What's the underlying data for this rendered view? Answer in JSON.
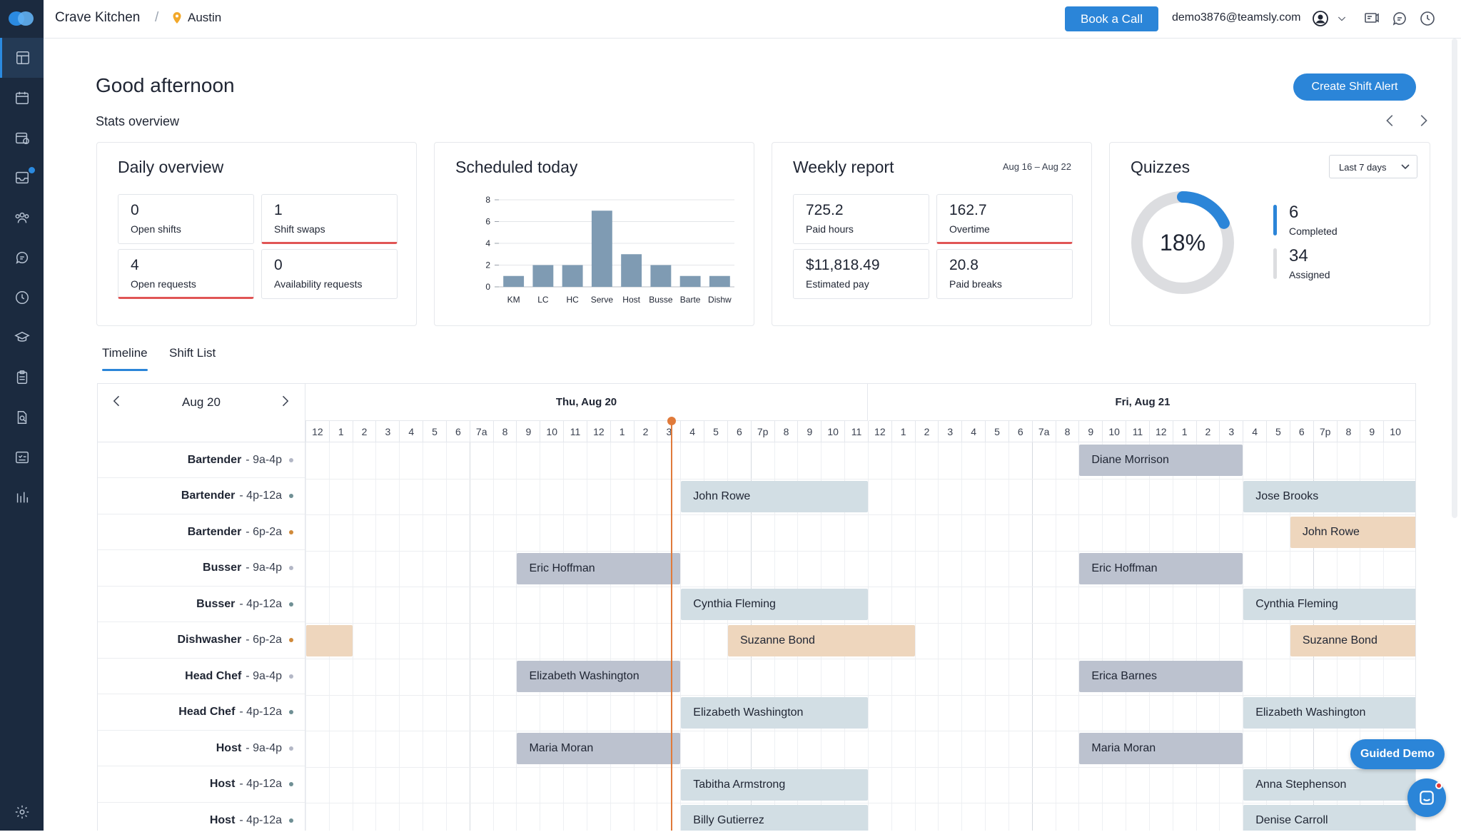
{
  "header": {
    "company": "Crave Kitchen",
    "separator": "/",
    "location": "Austin",
    "book_call_label": "Book a Call",
    "user_email": "demo3876@teamsly.com"
  },
  "greeting": "Good afternoon",
  "stats_title": "Stats overview",
  "create_alert_label": "Create Shift Alert",
  "daily": {
    "title": "Daily overview",
    "tiles": [
      {
        "value": "0",
        "label": "Open shifts"
      },
      {
        "value": "1",
        "label": "Shift swaps"
      },
      {
        "value": "4",
        "label": "Open requests"
      },
      {
        "value": "0",
        "label": "Availability requests"
      }
    ]
  },
  "scheduled": {
    "title": "Scheduled today"
  },
  "chart_data": {
    "type": "bar",
    "title": "Scheduled today",
    "categories": [
      "KM",
      "LC",
      "HC",
      "Serve",
      "Host",
      "Busse",
      "Barte",
      "Dishw"
    ],
    "values": [
      1,
      2,
      2,
      7,
      3,
      2,
      1,
      1
    ],
    "ylim": [
      0,
      8
    ],
    "yticks": [
      0,
      2,
      4,
      6,
      8
    ],
    "bar_color": "#7f9bb3",
    "grid": true
  },
  "weekly": {
    "title": "Weekly report",
    "range": "Aug 16 – Aug 22",
    "tiles": [
      {
        "value": "725.2",
        "label": "Paid hours"
      },
      {
        "value": "162.7",
        "label": "Overtime"
      },
      {
        "value": "$11,818.49",
        "label": "Estimated pay"
      },
      {
        "value": "20.8",
        "label": "Paid breaks"
      }
    ]
  },
  "quizzes": {
    "title": "Quizzes",
    "period": "Last 7 days",
    "percent_label": "18%",
    "percent_value": 0.18,
    "completed_value": "6",
    "completed_label": "Completed",
    "assigned_value": "34",
    "assigned_label": "Assigned"
  },
  "tabs": {
    "timeline": "Timeline",
    "shift_list": "Shift List"
  },
  "timeline": {
    "current_date": "Aug 20",
    "day1": "Thu, Aug 20",
    "day2": "Fri, Aug 21",
    "hours": [
      "12",
      "1",
      "2",
      "3",
      "4",
      "5",
      "6",
      "7a",
      "8",
      "9",
      "10",
      "11",
      "12",
      "1",
      "2",
      "3",
      "4",
      "5",
      "6",
      "7p",
      "8",
      "9",
      "10",
      "11",
      "12",
      "1",
      "2",
      "3",
      "4",
      "5",
      "6",
      "7a",
      "8",
      "9",
      "10",
      "11",
      "12",
      "1",
      "2",
      "3",
      "4",
      "5",
      "6",
      "7p",
      "8",
      "9",
      "10"
    ],
    "rows": [
      {
        "role": "Bartender",
        "time": "- 9a-4p",
        "dot": "#b3b7c6"
      },
      {
        "role": "Bartender",
        "time": "- 4p-12a",
        "dot": "#6f8f94"
      },
      {
        "role": "Bartender",
        "time": "- 6p-2a",
        "dot": "#d08a3a"
      },
      {
        "role": "Busser",
        "time": "- 9a-4p",
        "dot": "#b3b7c6"
      },
      {
        "role": "Busser",
        "time": "- 4p-12a",
        "dot": "#6f8f94"
      },
      {
        "role": "Dishwasher",
        "time": "- 6p-2a",
        "dot": "#d08a3a"
      },
      {
        "role": "Head Chef",
        "time": "- 9a-4p",
        "dot": "#b3b7c6"
      },
      {
        "role": "Head Chef",
        "time": "- 4p-12a",
        "dot": "#6f8f94"
      },
      {
        "role": "Host",
        "time": "- 9a-4p",
        "dot": "#b3b7c6"
      },
      {
        "role": "Host",
        "time": "- 4p-12a",
        "dot": "#6f8f94"
      },
      {
        "role": "Host",
        "time": "- 4p-12a",
        "dot": "#6f8f94"
      }
    ],
    "shifts": [
      {
        "row": 0,
        "start": "Fri 9a",
        "name": "Diane Morrison",
        "kind": "am"
      },
      {
        "row": 1,
        "start": "Thu 4p",
        "name": "John Rowe",
        "kind": "pm"
      },
      {
        "row": 1,
        "start": "Fri 4p",
        "name": "Jose Brooks",
        "kind": "pm"
      },
      {
        "row": 2,
        "start": "Fri 6p",
        "name": "John Rowe",
        "kind": "night"
      },
      {
        "row": 3,
        "start": "Thu 9a",
        "name": "Eric Hoffman",
        "kind": "am"
      },
      {
        "row": 3,
        "start": "Fri 9a",
        "name": "Eric Hoffman",
        "kind": "am"
      },
      {
        "row": 4,
        "start": "Thu 4p",
        "name": "Cynthia Fleming",
        "kind": "pm"
      },
      {
        "row": 4,
        "start": "Fri 4p",
        "name": "Cynthia Fleming",
        "kind": "pm"
      },
      {
        "row": 5,
        "start": "Wed 6p",
        "name": "",
        "kind": "night"
      },
      {
        "row": 5,
        "start": "Thu 6p",
        "name": "Suzanne Bond",
        "kind": "night"
      },
      {
        "row": 5,
        "start": "Fri 6p",
        "name": "Suzanne Bond",
        "kind": "night"
      },
      {
        "row": 6,
        "start": "Thu 9a",
        "name": "Elizabeth Washington",
        "kind": "am"
      },
      {
        "row": 6,
        "start": "Fri 9a",
        "name": "Erica Barnes",
        "kind": "am"
      },
      {
        "row": 7,
        "start": "Thu 4p",
        "name": "Elizabeth Washington",
        "kind": "pm"
      },
      {
        "row": 7,
        "start": "Fri 4p",
        "name": "Elizabeth Washington",
        "kind": "pm"
      },
      {
        "row": 8,
        "start": "Thu 9a",
        "name": "Maria Moran",
        "kind": "am"
      },
      {
        "row": 8,
        "start": "Fri 9a",
        "name": "Maria Moran",
        "kind": "am"
      },
      {
        "row": 9,
        "start": "Thu 4p",
        "name": "Tabitha Armstrong",
        "kind": "pm"
      },
      {
        "row": 9,
        "start": "Fri 4p",
        "name": "Anna Stephenson",
        "kind": "pm"
      },
      {
        "row": 10,
        "start": "Thu 4p",
        "name": "Billy Gutierrez",
        "kind": "pm"
      },
      {
        "row": 10,
        "start": "Fri 4p",
        "name": "Denise Carroll",
        "kind": "pm"
      }
    ]
  },
  "guided_demo_label": "Guided Demo",
  "colors": {
    "accent": "#2b85d8",
    "sidebar": "#1b2a3f",
    "now_line": "#e07a3a",
    "alert": "#e05555"
  }
}
